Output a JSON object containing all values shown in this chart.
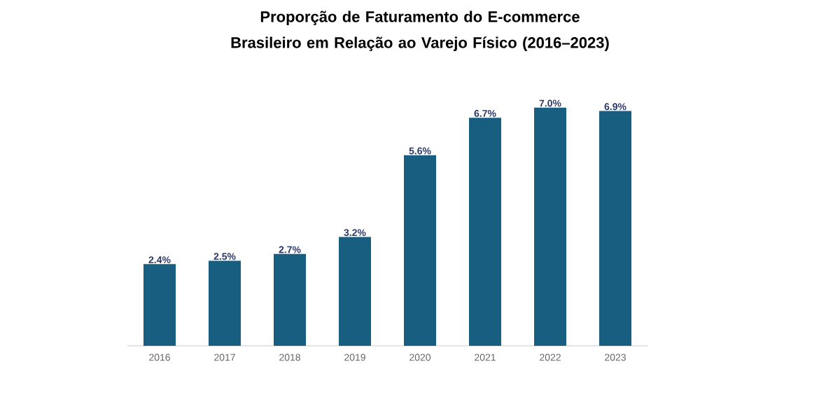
{
  "chart_data": {
    "type": "bar",
    "title": "Proporção de Faturamento do E-commerce Brasileiro em Relação ao Varejo Físico (2016–2023)",
    "categories": [
      "2016",
      "2017",
      "2018",
      "2019",
      "2020",
      "2021",
      "2022",
      "2023"
    ],
    "values": [
      2.4,
      2.5,
      2.7,
      3.2,
      5.6,
      6.7,
      7.0,
      6.9
    ],
    "value_labels": [
      "2.4%",
      "2.5%",
      "2.7%",
      "3.2%",
      "5.6%",
      "6.7%",
      "7.0%",
      "6.9%"
    ],
    "color": "#175e80",
    "tick_labels": "x",
    "grid": false
  }
}
